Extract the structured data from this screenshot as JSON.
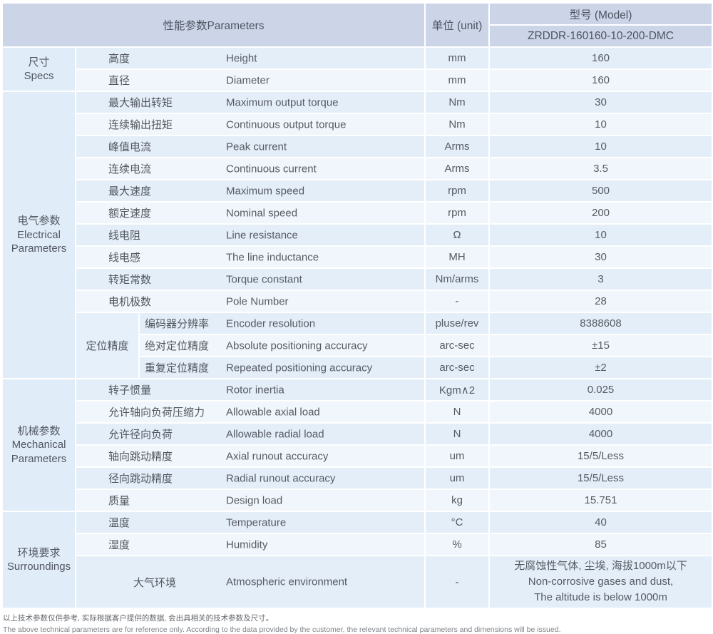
{
  "header": {
    "parameters_label": "性能参数Parameters",
    "unit_label": "单位 (unit)",
    "model_label": "型号 (Model)",
    "model_value": "ZRDDR-160160-10-200-DMC"
  },
  "groups": [
    {
      "cn": "尺寸",
      "en": "Specs"
    },
    {
      "cn": "电气参数",
      "en": "Electrical Parameters"
    },
    {
      "cn": "机械参数",
      "en": "Mechanical Parameters"
    },
    {
      "cn": "环境要求",
      "en": "Surroundings"
    }
  ],
  "subgroup": {
    "cn": "定位精度"
  },
  "rows": [
    {
      "cn": "高度",
      "en": "Height",
      "unit": "mm",
      "value": "160"
    },
    {
      "cn": "直径",
      "en": "Diameter",
      "unit": "mm",
      "value": "160"
    },
    {
      "cn": "最大输出转矩",
      "en": "Maximum output torque",
      "unit": "Nm",
      "value": "30"
    },
    {
      "cn": "连续输出扭矩",
      "en": "Continuous output torque",
      "unit": "Nm",
      "value": "10"
    },
    {
      "cn": "峰值电流",
      "en": "Peak current",
      "unit": "Arms",
      "value": "10"
    },
    {
      "cn": "连续电流",
      "en": "Continuous current",
      "unit": "Arms",
      "value": "3.5"
    },
    {
      "cn": "最大速度",
      "en": "Maximum speed",
      "unit": "rpm",
      "value": "500"
    },
    {
      "cn": "额定速度",
      "en": "Nominal speed",
      "unit": "rpm",
      "value": "200"
    },
    {
      "cn": "线电阻",
      "en": "Line resistance",
      "unit": "Ω",
      "value": "10"
    },
    {
      "cn": "线电感",
      "en": "The line inductance",
      "unit": "MH",
      "value": "30"
    },
    {
      "cn": "转矩常数",
      "en": "Torque constant",
      "unit": "Nm/arms",
      "value": "3"
    },
    {
      "cn": "电机极数",
      "en": "Pole Number",
      "unit": "-",
      "value": "28"
    },
    {
      "cn": "编码器分辨率",
      "en": "Encoder resolution",
      "unit": "pluse/rev",
      "value": "8388608"
    },
    {
      "cn": "绝对定位精度",
      "en": "Absolute positioning accuracy",
      "unit": "arc-sec",
      "value": "±15"
    },
    {
      "cn": "重复定位精度",
      "en": "Repeated positioning accuracy",
      "unit": "arc-sec",
      "value": "±2"
    },
    {
      "cn": "转子惯量",
      "en": "Rotor inertia",
      "unit": "Kgm∧2",
      "value": "0.025"
    },
    {
      "cn": "允许轴向负荷压缩力",
      "en": "Allowable axial load",
      "unit": "N",
      "value": "4000"
    },
    {
      "cn": "允许径向负荷",
      "en": "Allowable radial load",
      "unit": "N",
      "value": "4000"
    },
    {
      "cn": "轴向跳动精度",
      "en": "Axial runout accuracy",
      "unit": "um",
      "value": "15/5/Less"
    },
    {
      "cn": "径向跳动精度",
      "en": "Radial runout accuracy",
      "unit": "um",
      "value": "15/5/Less"
    },
    {
      "cn": "质量",
      "en": "Design load",
      "unit": "kg",
      "value": "15.751"
    },
    {
      "cn": "温度",
      "en": "Temperature",
      "unit": "°C",
      "value": "40"
    },
    {
      "cn": "湿度",
      "en": "Humidity",
      "unit": "%",
      "value": "85"
    },
    {
      "cn": "大气环境",
      "en": "Atmospheric environment",
      "unit": "-",
      "value_lines": [
        "无腐蚀性气体, 尘埃, 海拔1000m以下",
        "Non-corrosive gases and dust,",
        "The altitude is below 1000m"
      ]
    }
  ],
  "footer": {
    "note_cn": "以上技术参数仅供参考, 实际根据客户提供的数据, 会出具相关的技术参数及尺寸。",
    "note_en": "The above technical parameters are for reference only. According to the data provided by the customer, the relevant technical parameters and dimensions will be issued."
  },
  "colors": {
    "header_bg": "#ccd4e8",
    "row_dark": "#e4eef9",
    "row_light": "#f1f6fc",
    "group_bg": "#e1ecf9",
    "grid": "#ffffff"
  }
}
